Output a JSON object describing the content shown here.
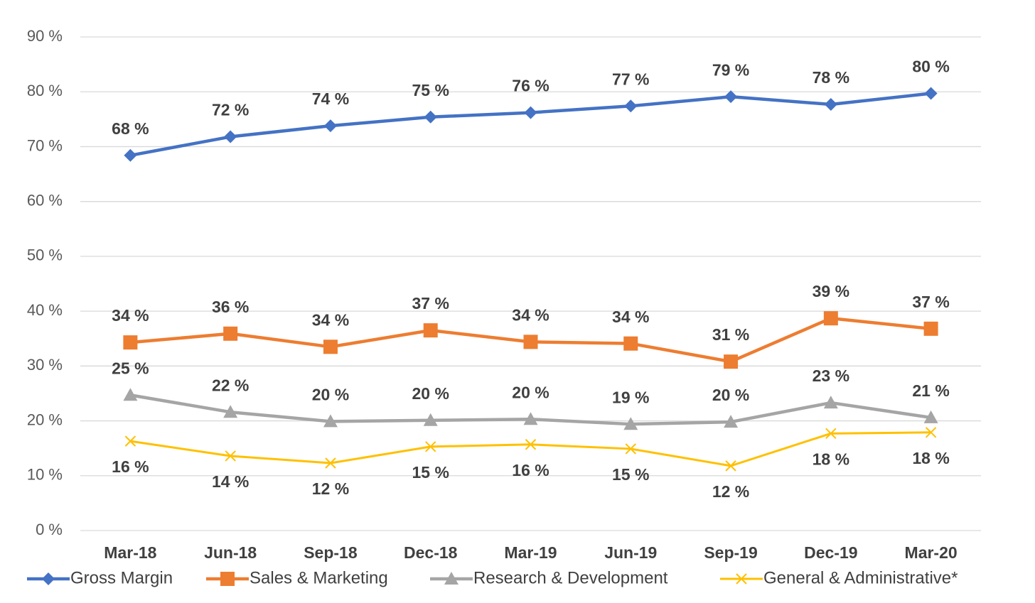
{
  "chart_data": {
    "type": "line",
    "categories": [
      "Mar-18",
      "Jun-18",
      "Sep-18",
      "Dec-18",
      "Mar-19",
      "Jun-19",
      "Sep-19",
      "Dec-19",
      "Mar-20"
    ],
    "ylim": [
      0,
      90
    ],
    "yticks": [
      {
        "value": 0,
        "label": "0 %"
      },
      {
        "value": 10,
        "label": "10 %"
      },
      {
        "value": 20,
        "label": "20 %"
      },
      {
        "value": 30,
        "label": "30 %"
      },
      {
        "value": 40,
        "label": "40 %"
      },
      {
        "value": 50,
        "label": "50 %"
      },
      {
        "value": 60,
        "label": "60 %"
      },
      {
        "value": 70,
        "label": "70 %"
      },
      {
        "value": 80,
        "label": "80 %"
      },
      {
        "value": 90,
        "label": "90 %"
      }
    ],
    "grid": true,
    "legend": "bottom",
    "series": [
      {
        "name": "Gross Margin",
        "color": "#4472c4",
        "marker": "diamond",
        "values": [
          68.4,
          71.8,
          73.8,
          75.4,
          76.2,
          77.4,
          79.1,
          77.7,
          79.7
        ],
        "value_labels": [
          "68 %",
          "72 %",
          "74 %",
          "75 %",
          "76 %",
          "77 %",
          "79 %",
          "78 %",
          "80 %"
        ]
      },
      {
        "name": "Sales & Marketing",
        "color": "#ed7d31",
        "marker": "square",
        "values": [
          34.3,
          35.9,
          33.5,
          36.5,
          34.4,
          34.1,
          30.8,
          38.7,
          36.8
        ],
        "value_labels": [
          "34 %",
          "36 %",
          "34 %",
          "37 %",
          "34 %",
          "34 %",
          "31 %",
          "39 %",
          "37 %"
        ]
      },
      {
        "name": "Research & Development",
        "color": "#a5a5a5",
        "marker": "triangle",
        "values": [
          24.7,
          21.6,
          19.9,
          20.1,
          20.3,
          19.4,
          19.8,
          23.3,
          20.6
        ],
        "value_labels": [
          "25 %",
          "22 %",
          "20 %",
          "20 %",
          "20 %",
          "19 %",
          "20 %",
          "23 %",
          "21 %"
        ]
      },
      {
        "name": "General & Administrative*",
        "color": "#ffc000",
        "marker": "x",
        "values": [
          16.3,
          13.6,
          12.3,
          15.3,
          15.7,
          14.9,
          11.8,
          17.7,
          17.9
        ],
        "value_labels": [
          "16 %",
          "14 %",
          "12 %",
          "15 %",
          "16 %",
          "15 %",
          "12 %",
          "18 %",
          "18 %"
        ]
      }
    ]
  }
}
